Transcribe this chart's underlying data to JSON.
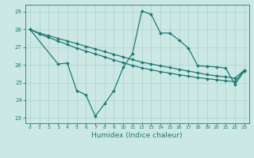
{
  "line1_x": [
    0,
    1,
    2,
    3,
    4,
    5,
    6,
    7,
    8,
    9,
    10,
    11,
    12,
    13,
    14,
    15,
    16,
    17,
    18,
    19,
    20,
    21,
    22,
    23
  ],
  "line1_y": [
    28.0,
    27.8,
    27.65,
    27.5,
    27.35,
    27.2,
    27.05,
    26.9,
    26.75,
    26.6,
    26.45,
    26.3,
    26.15,
    26.05,
    25.95,
    25.85,
    25.75,
    25.65,
    25.55,
    25.45,
    25.38,
    25.32,
    25.25,
    25.7
  ],
  "line2_x": [
    0,
    1,
    2,
    3,
    4,
    5,
    6,
    7,
    8,
    9,
    10,
    11,
    12,
    13,
    14,
    15,
    16,
    17,
    18,
    19,
    20,
    21,
    22,
    23
  ],
  "line2_y": [
    28.0,
    27.75,
    27.55,
    27.35,
    27.15,
    26.95,
    26.78,
    26.62,
    26.45,
    26.28,
    26.12,
    25.97,
    25.83,
    25.72,
    25.62,
    25.53,
    25.44,
    25.36,
    25.28,
    25.22,
    25.16,
    25.1,
    25.05,
    25.7
  ],
  "line3_x": [
    0,
    3,
    4,
    5,
    6,
    7,
    8,
    9,
    10,
    11,
    12,
    13,
    14,
    15,
    16,
    17,
    18,
    19,
    20,
    21,
    22,
    23
  ],
  "line3_y": [
    28.0,
    26.05,
    26.1,
    24.55,
    24.3,
    23.1,
    23.8,
    24.55,
    25.85,
    26.65,
    29.05,
    28.85,
    27.8,
    27.8,
    27.4,
    26.95,
    25.95,
    25.92,
    25.88,
    25.82,
    24.9,
    25.65
  ],
  "line_color": "#1e7b70",
  "marker": "D",
  "markersize": 2.0,
  "linewidth": 0.9,
  "xlabel": "Humidex (Indice chaleur)",
  "xlim": [
    -0.5,
    23.5
  ],
  "ylim": [
    22.7,
    29.4
  ],
  "xticks": [
    0,
    1,
    2,
    3,
    4,
    5,
    6,
    7,
    8,
    9,
    10,
    11,
    12,
    13,
    14,
    15,
    16,
    17,
    18,
    19,
    20,
    21,
    22,
    23
  ],
  "yticks": [
    23,
    24,
    25,
    26,
    27,
    28,
    29
  ],
  "bg_color": "#cce8e5",
  "grid_color": "#aad0cc",
  "line_teal": "#1e7b70"
}
